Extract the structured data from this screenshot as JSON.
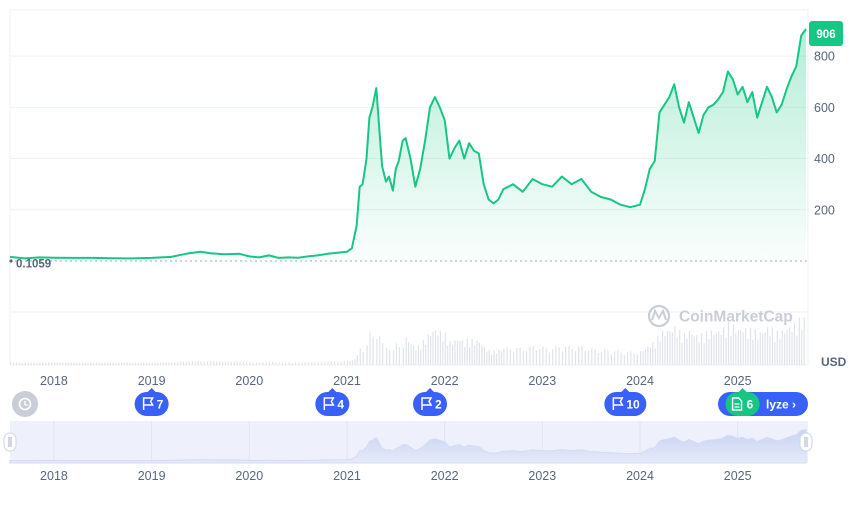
{
  "chart_data": {
    "type": "line",
    "currency": "USD",
    "current_price_label": "906",
    "baseline_label": "0.1059",
    "watermark": "CoinMarketCap",
    "ylim": [
      0,
      980
    ],
    "yticks": [
      200,
      400,
      600,
      800
    ],
    "xlim": [
      2017.55,
      2025.72
    ],
    "x_tick_labels": [
      "2018",
      "2019",
      "2020",
      "2021",
      "2022",
      "2023",
      "2024",
      "2025"
    ],
    "colors": {
      "line": "#16c784",
      "fill": "#16c784",
      "badge": "#16c784",
      "flag": "#3861fb",
      "baseline": "#b7bdc6"
    },
    "series": [
      {
        "x": [
          2017.55,
          2017.7,
          2017.85,
          2018.0,
          2018.2,
          2018.4,
          2018.6,
          2018.8,
          2019.0,
          2019.2,
          2019.35,
          2019.5,
          2019.6,
          2019.75,
          2019.9,
          2020.0,
          2020.1,
          2020.2,
          2020.3,
          2020.4,
          2020.5,
          2020.6,
          2020.7,
          2020.8,
          2020.9,
          2021.0,
          2021.05,
          2021.1,
          2021.13,
          2021.16,
          2021.2,
          2021.23,
          2021.26,
          2021.3,
          2021.33,
          2021.36,
          2021.4,
          2021.43,
          2021.47,
          2021.5,
          2021.53,
          2021.57,
          2021.6,
          2021.65,
          2021.7,
          2021.75,
          2021.8,
          2021.85,
          2021.9,
          2021.95,
          2022.0,
          2022.05,
          2022.1,
          2022.15,
          2022.2,
          2022.25,
          2022.3,
          2022.35,
          2022.4,
          2022.45,
          2022.5,
          2022.55,
          2022.6,
          2022.7,
          2022.8,
          2022.9,
          2023.0,
          2023.1,
          2023.2,
          2023.3,
          2023.4,
          2023.5,
          2023.6,
          2023.7,
          2023.8,
          2023.9,
          2024.0,
          2024.05,
          2024.1,
          2024.15,
          2024.2,
          2024.25,
          2024.3,
          2024.35,
          2024.4,
          2024.45,
          2024.5,
          2024.55,
          2024.6,
          2024.65,
          2024.7,
          2024.75,
          2024.8,
          2024.85,
          2024.9,
          2024.95,
          2025.0,
          2025.05,
          2025.1,
          2025.15,
          2025.2,
          2025.25,
          2025.3,
          2025.35,
          2025.4,
          2025.45,
          2025.5,
          2025.55,
          2025.6,
          2025.65,
          2025.7
        ],
        "y": [
          16,
          10,
          14,
          13,
          12,
          12,
          11,
          10,
          12,
          16,
          28,
          36,
          30,
          26,
          28,
          18,
          14,
          22,
          12,
          14,
          13,
          18,
          22,
          28,
          32,
          36,
          50,
          140,
          290,
          300,
          400,
          560,
          600,
          675,
          520,
          370,
          310,
          330,
          275,
          360,
          390,
          470,
          480,
          400,
          290,
          360,
          470,
          600,
          640,
          600,
          550,
          400,
          440,
          470,
          400,
          460,
          430,
          420,
          300,
          240,
          225,
          240,
          280,
          300,
          270,
          320,
          300,
          290,
          330,
          300,
          320,
          270,
          250,
          240,
          220,
          210,
          220,
          280,
          360,
          390,
          580,
          610,
          640,
          690,
          600,
          540,
          620,
          560,
          500,
          570,
          600,
          610,
          630,
          660,
          740,
          710,
          650,
          680,
          620,
          660,
          560,
          620,
          680,
          640,
          580,
          610,
          670,
          720,
          760,
          880,
          906
        ]
      }
    ]
  },
  "range_selector": {
    "x_tick_labels": [
      "2018",
      "2019",
      "2020",
      "2021",
      "2022",
      "2023",
      "2024",
      "2025"
    ]
  },
  "events": [
    {
      "type": "history",
      "icon": "history-icon",
      "label": ""
    },
    {
      "type": "flag",
      "icon": "flag-icon",
      "label": "7",
      "year": 2019.0
    },
    {
      "type": "flag",
      "icon": "flag-icon",
      "label": "4",
      "year": 2020.85
    },
    {
      "type": "flag",
      "icon": "flag-icon",
      "label": "2",
      "year": 2021.85
    },
    {
      "type": "flag",
      "icon": "flag-icon",
      "label": "10",
      "year": 2023.85
    },
    {
      "type": "doc",
      "icon": "document-icon",
      "label": "6",
      "year": 2025.05
    }
  ],
  "analyze_button": {
    "label": "lyze ›",
    "icon": "document-icon"
  }
}
